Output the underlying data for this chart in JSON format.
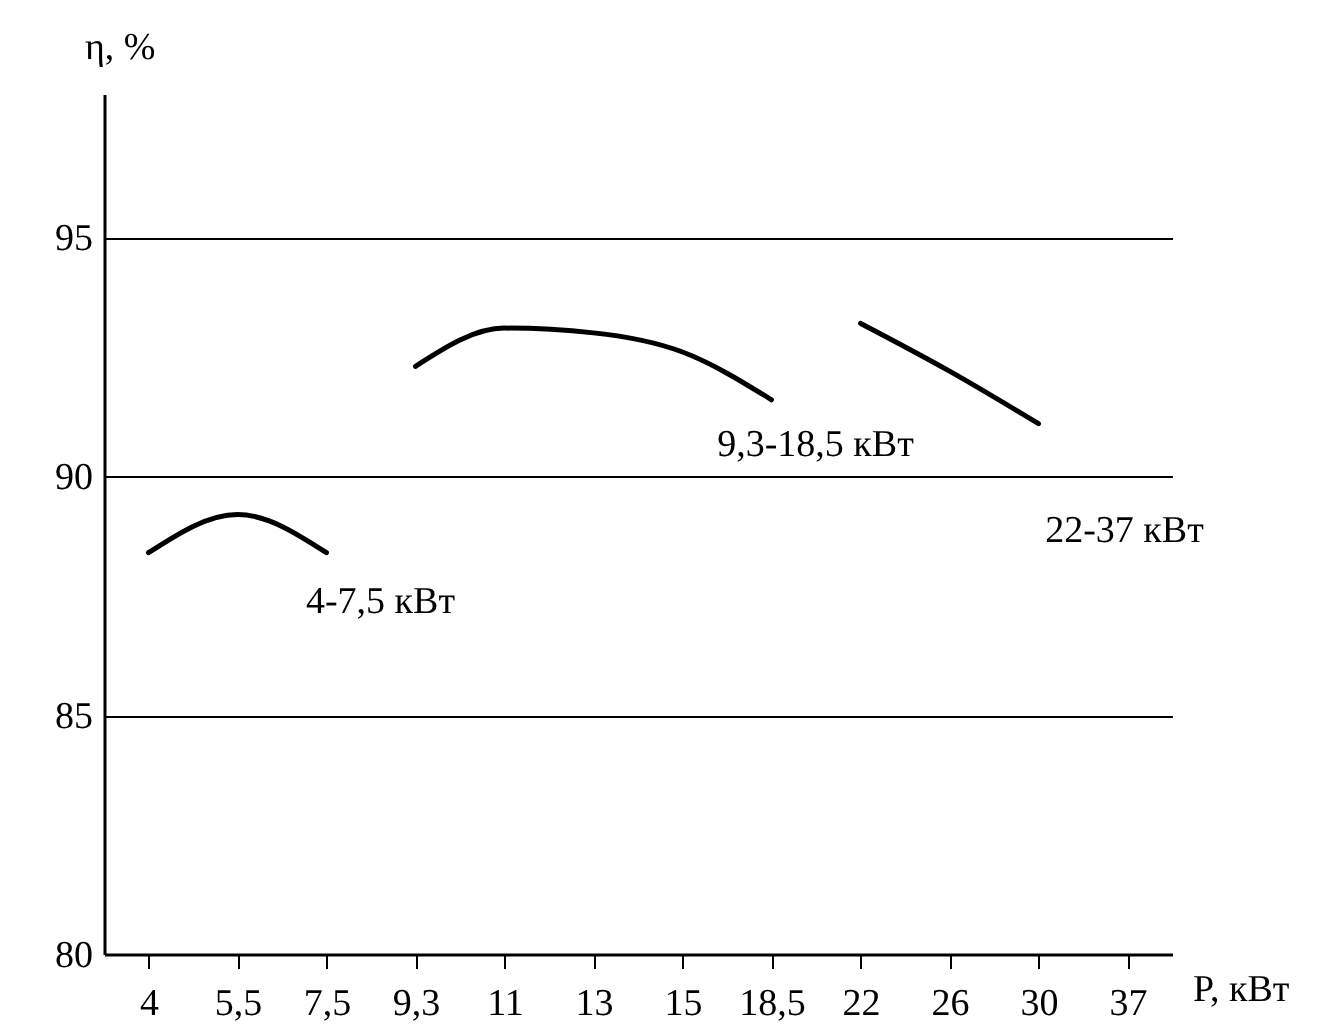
{
  "chart_data": {
    "type": "line",
    "xlabel": "P, кВт",
    "ylabel": "η, %",
    "categories": [
      "4",
      "5,5",
      "7,5",
      "9,3",
      "11",
      "13",
      "15",
      "18,5",
      "22",
      "26",
      "30",
      "37"
    ],
    "ylim": [
      80,
      98
    ],
    "yticks": [
      80,
      85,
      90,
      95
    ],
    "grid": "y",
    "legend": false,
    "series": [
      {
        "name": "4-7,5 кВт",
        "color": "#000000",
        "values": [
          88.4,
          89.2,
          88.4,
          null,
          null,
          null,
          null,
          null,
          null,
          null,
          null,
          null
        ]
      },
      {
        "name": "9,3-18,5 кВт",
        "color": "#000000",
        "values": [
          null,
          null,
          null,
          92.3,
          93.1,
          93.0,
          92.6,
          91.6,
          null,
          null,
          null,
          null
        ]
      },
      {
        "name": "22-37 кВт",
        "color": "#000000",
        "values": [
          null,
          null,
          null,
          null,
          null,
          null,
          null,
          null,
          93.2,
          92.2,
          91.1,
          null
        ]
      }
    ]
  }
}
